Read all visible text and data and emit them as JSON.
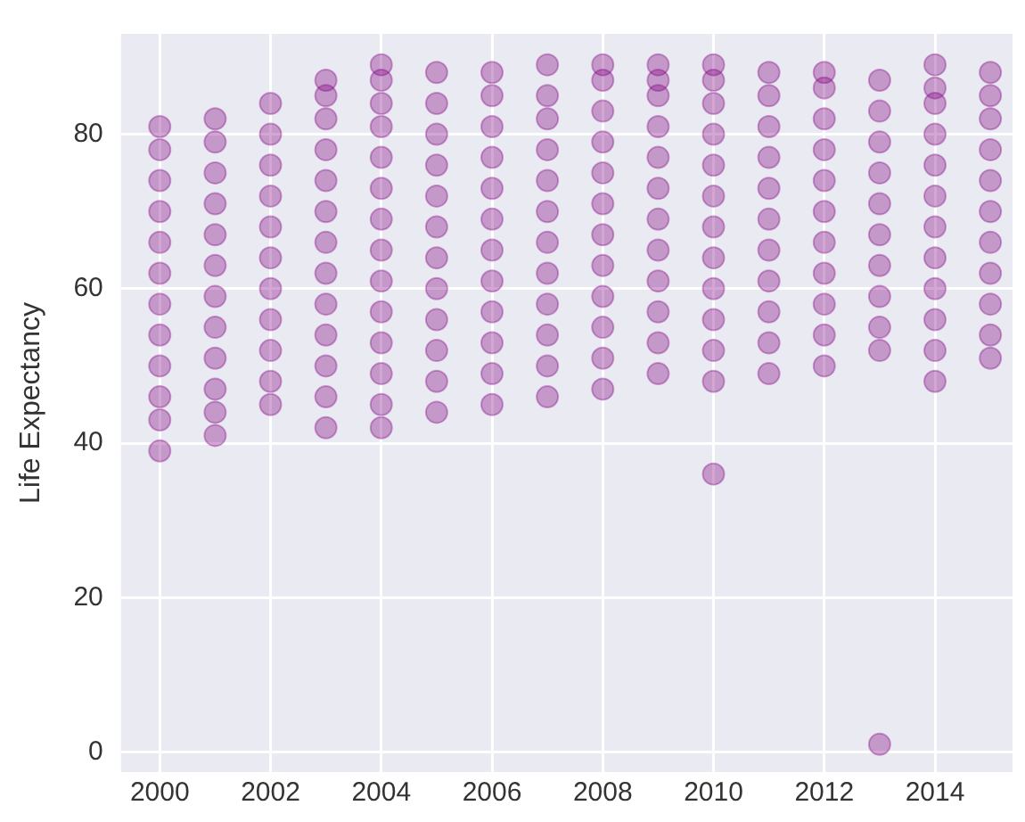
{
  "chart_data": {
    "type": "scatter",
    "ylabel": "Life Expectancy",
    "x": [
      2000,
      2000,
      2000,
      2000,
      2000,
      2000,
      2000,
      2000,
      2000,
      2000,
      2000,
      2000,
      2001,
      2001,
      2001,
      2001,
      2001,
      2001,
      2001,
      2001,
      2001,
      2001,
      2001,
      2001,
      2002,
      2002,
      2002,
      2002,
      2002,
      2002,
      2002,
      2002,
      2002,
      2002,
      2002,
      2003,
      2003,
      2003,
      2003,
      2003,
      2003,
      2003,
      2003,
      2003,
      2003,
      2003,
      2003,
      2003,
      2004,
      2004,
      2004,
      2004,
      2004,
      2004,
      2004,
      2004,
      2004,
      2004,
      2004,
      2004,
      2004,
      2004,
      2005,
      2005,
      2005,
      2005,
      2005,
      2005,
      2005,
      2005,
      2005,
      2005,
      2005,
      2005,
      2006,
      2006,
      2006,
      2006,
      2006,
      2006,
      2006,
      2006,
      2006,
      2006,
      2006,
      2006,
      2007,
      2007,
      2007,
      2007,
      2007,
      2007,
      2007,
      2007,
      2007,
      2007,
      2007,
      2007,
      2008,
      2008,
      2008,
      2008,
      2008,
      2008,
      2008,
      2008,
      2008,
      2008,
      2008,
      2008,
      2009,
      2009,
      2009,
      2009,
      2009,
      2009,
      2009,
      2009,
      2009,
      2009,
      2009,
      2009,
      2010,
      2010,
      2010,
      2010,
      2010,
      2010,
      2010,
      2010,
      2010,
      2010,
      2010,
      2010,
      2010,
      2011,
      2011,
      2011,
      2011,
      2011,
      2011,
      2011,
      2011,
      2011,
      2011,
      2011,
      2012,
      2012,
      2012,
      2012,
      2012,
      2012,
      2012,
      2012,
      2012,
      2012,
      2012,
      2013,
      2013,
      2013,
      2013,
      2013,
      2013,
      2013,
      2013,
      2013,
      2013,
      2013,
      2014,
      2014,
      2014,
      2014,
      2014,
      2014,
      2014,
      2014,
      2014,
      2014,
      2014,
      2014,
      2015,
      2015,
      2015,
      2015,
      2015,
      2015,
      2015,
      2015,
      2015,
      2015,
      2015
    ],
    "series": [
      {
        "color": "#800080",
        "values": [
          39,
          43,
          46,
          50,
          54,
          58,
          62,
          66,
          70,
          74,
          78,
          81,
          41,
          44,
          47,
          51,
          55,
          59,
          63,
          67,
          71,
          75,
          79,
          82,
          45,
          48,
          52,
          56,
          60,
          64,
          68,
          72,
          76,
          80,
          84,
          42,
          46,
          50,
          54,
          58,
          62,
          66,
          70,
          74,
          78,
          82,
          85,
          87,
          42,
          45,
          49,
          53,
          57,
          61,
          65,
          69,
          73,
          77,
          81,
          84,
          87,
          89,
          44,
          48,
          52,
          56,
          60,
          64,
          68,
          72,
          76,
          80,
          84,
          88,
          45,
          49,
          53,
          57,
          61,
          65,
          69,
          73,
          77,
          81,
          85,
          88,
          46,
          50,
          54,
          58,
          62,
          66,
          70,
          74,
          78,
          82,
          85,
          89,
          47,
          51,
          55,
          59,
          63,
          67,
          71,
          75,
          79,
          83,
          87,
          89,
          49,
          53,
          57,
          61,
          65,
          69,
          73,
          77,
          81,
          85,
          87,
          89,
          36,
          48,
          52,
          56,
          60,
          64,
          68,
          72,
          76,
          80,
          84,
          87,
          89,
          49,
          53,
          57,
          61,
          65,
          69,
          73,
          77,
          81,
          85,
          88,
          50,
          54,
          58,
          62,
          66,
          70,
          74,
          78,
          82,
          86,
          88,
          1,
          52,
          55,
          59,
          63,
          67,
          71,
          75,
          79,
          83,
          87,
          48,
          52,
          56,
          60,
          64,
          68,
          72,
          76,
          80,
          84,
          86,
          89,
          51,
          54,
          58,
          62,
          66,
          70,
          74,
          78,
          82,
          85,
          88
        ]
      }
    ],
    "xlim": [
      1999.3,
      2015.4
    ],
    "xticks": [
      2000,
      2002,
      2004,
      2006,
      2008,
      2010,
      2012,
      2014
    ],
    "ylim": [
      -2.6,
      93
    ],
    "yticks": [
      0,
      20,
      40,
      60,
      80
    ],
    "grid": true,
    "legend": false,
    "marker": "circle"
  }
}
